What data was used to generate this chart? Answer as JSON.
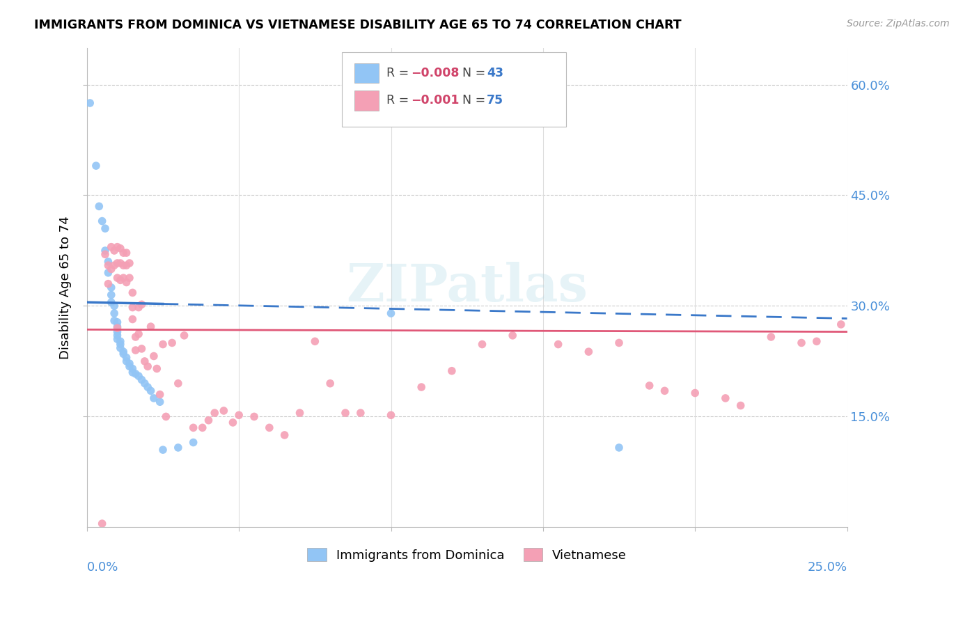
{
  "title": "IMMIGRANTS FROM DOMINICA VS VIETNAMESE DISABILITY AGE 65 TO 74 CORRELATION CHART",
  "source": "Source: ZipAtlas.com",
  "ylabel": "Disability Age 65 to 74",
  "yticks": [
    "60.0%",
    "45.0%",
    "30.0%",
    "15.0%"
  ],
  "ytick_vals": [
    0.6,
    0.45,
    0.3,
    0.15
  ],
  "xlim": [
    0.0,
    0.25
  ],
  "ylim": [
    0.0,
    0.65
  ],
  "legend_series1_label": "Immigrants from Dominica",
  "legend_series2_label": "Vietnamese",
  "color_dominica": "#92c5f5",
  "color_vietnamese": "#f4a0b5",
  "color_dominica_line": "#3a78c9",
  "color_vietnamese_line": "#e05878",
  "watermark": "ZIPatlas",
  "dominica_x": [
    0.001,
    0.003,
    0.004,
    0.005,
    0.006,
    0.006,
    0.007,
    0.007,
    0.008,
    0.008,
    0.008,
    0.009,
    0.009,
    0.009,
    0.01,
    0.01,
    0.01,
    0.01,
    0.01,
    0.011,
    0.011,
    0.011,
    0.012,
    0.012,
    0.013,
    0.013,
    0.014,
    0.014,
    0.015,
    0.015,
    0.016,
    0.017,
    0.018,
    0.019,
    0.02,
    0.021,
    0.022,
    0.024,
    0.025,
    0.03,
    0.035,
    0.1,
    0.175
  ],
  "dominica_y": [
    0.575,
    0.49,
    0.435,
    0.415,
    0.405,
    0.375,
    0.36,
    0.345,
    0.325,
    0.315,
    0.305,
    0.3,
    0.29,
    0.28,
    0.278,
    0.272,
    0.265,
    0.26,
    0.255,
    0.252,
    0.248,
    0.243,
    0.238,
    0.235,
    0.23,
    0.225,
    0.222,
    0.218,
    0.215,
    0.21,
    0.208,
    0.205,
    0.2,
    0.195,
    0.19,
    0.185,
    0.175,
    0.17,
    0.105,
    0.108,
    0.115,
    0.29,
    0.108
  ],
  "vietnamese_x": [
    0.005,
    0.006,
    0.007,
    0.007,
    0.008,
    0.008,
    0.009,
    0.009,
    0.01,
    0.01,
    0.01,
    0.011,
    0.011,
    0.011,
    0.012,
    0.012,
    0.012,
    0.013,
    0.013,
    0.013,
    0.014,
    0.014,
    0.015,
    0.015,
    0.015,
    0.016,
    0.016,
    0.017,
    0.017,
    0.018,
    0.018,
    0.019,
    0.02,
    0.021,
    0.022,
    0.023,
    0.024,
    0.025,
    0.026,
    0.028,
    0.03,
    0.032,
    0.035,
    0.038,
    0.04,
    0.042,
    0.045,
    0.048,
    0.05,
    0.055,
    0.06,
    0.065,
    0.07,
    0.075,
    0.08,
    0.085,
    0.09,
    0.1,
    0.11,
    0.12,
    0.13,
    0.14,
    0.155,
    0.165,
    0.175,
    0.185,
    0.19,
    0.2,
    0.21,
    0.215,
    0.225,
    0.235,
    0.24,
    0.248,
    0.01
  ],
  "vietnamese_y": [
    0.005,
    0.37,
    0.355,
    0.33,
    0.38,
    0.35,
    0.375,
    0.355,
    0.38,
    0.358,
    0.338,
    0.378,
    0.358,
    0.335,
    0.372,
    0.355,
    0.338,
    0.372,
    0.355,
    0.332,
    0.358,
    0.338,
    0.318,
    0.298,
    0.282,
    0.258,
    0.24,
    0.298,
    0.262,
    0.242,
    0.302,
    0.225,
    0.218,
    0.272,
    0.232,
    0.215,
    0.18,
    0.248,
    0.15,
    0.25,
    0.195,
    0.26,
    0.135,
    0.135,
    0.145,
    0.155,
    0.158,
    0.142,
    0.152,
    0.15,
    0.135,
    0.125,
    0.155,
    0.252,
    0.195,
    0.155,
    0.155,
    0.152,
    0.19,
    0.212,
    0.248,
    0.26,
    0.248,
    0.238,
    0.25,
    0.192,
    0.185,
    0.182,
    0.175,
    0.165,
    0.258,
    0.25,
    0.252,
    0.275,
    0.27
  ]
}
